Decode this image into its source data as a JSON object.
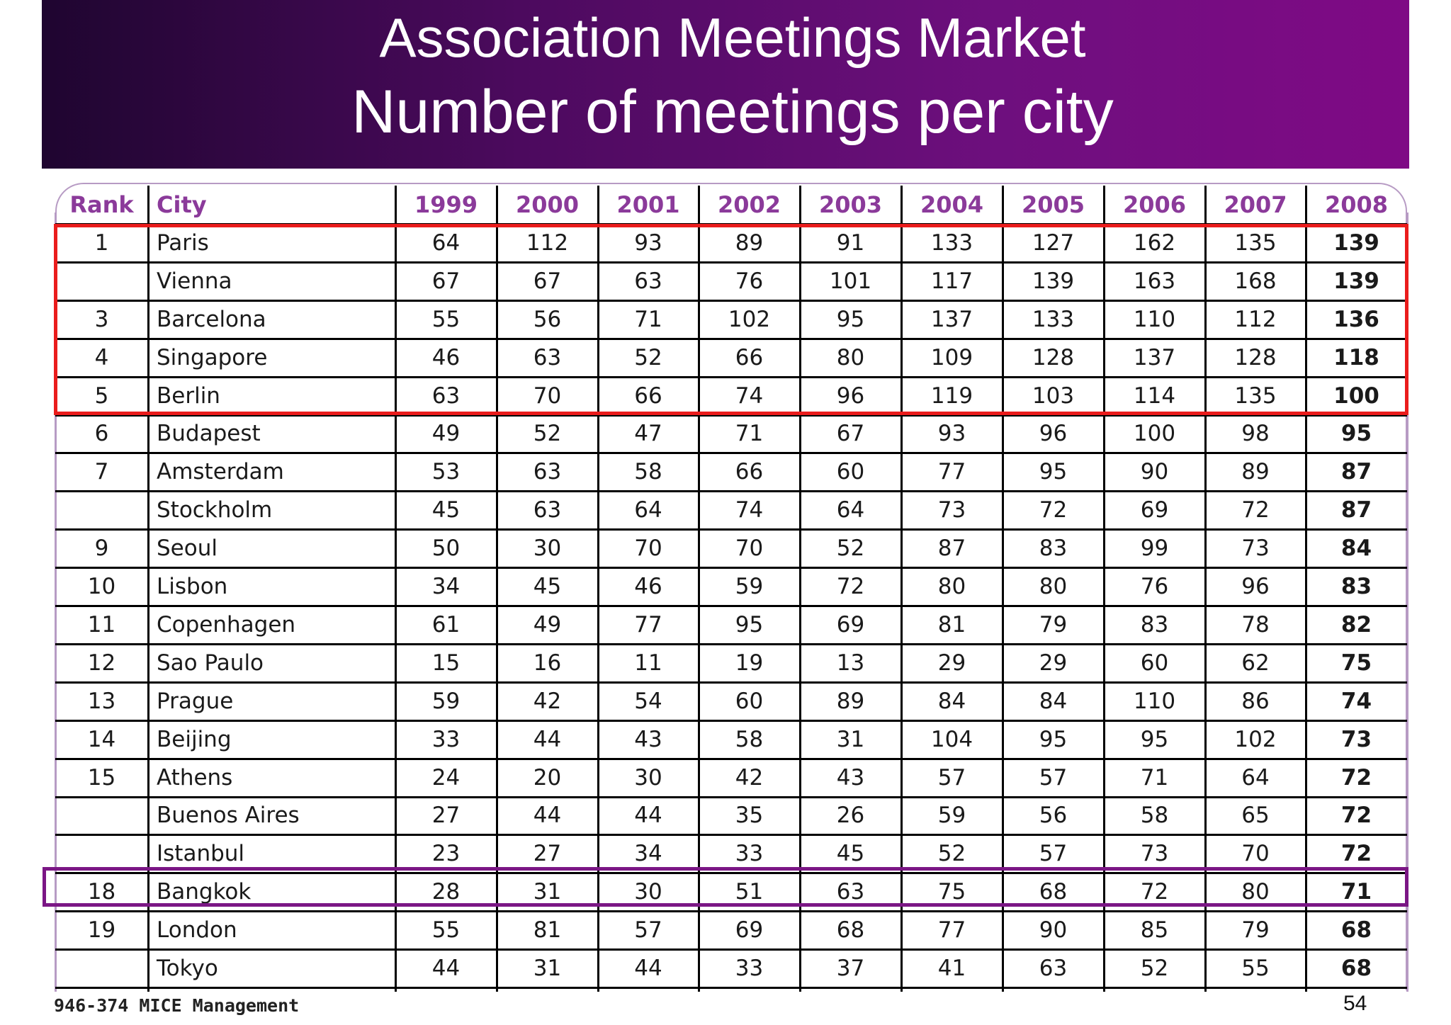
{
  "slide": {
    "title_line1": "Association Meetings Market",
    "title_line2": "Number of meetings per city",
    "footer": "946-374 MICE Management",
    "page_number": "54"
  },
  "colors": {
    "banner_start": "#1f0530",
    "banner_end": "#7f0a85",
    "header_text": "#8b3a9a",
    "highlight_top5": "#ea1c1c",
    "highlight_bangkok": "#7b1685"
  },
  "table": {
    "headers": [
      "Rank",
      "City",
      "1999",
      "2000",
      "2001",
      "2002",
      "2003",
      "2004",
      "2005",
      "2006",
      "2007",
      "2008"
    ],
    "rows": [
      [
        "1",
        "Paris",
        "64",
        "112",
        "93",
        "89",
        "91",
        "133",
        "127",
        "162",
        "135",
        "139"
      ],
      [
        "",
        "Vienna",
        "67",
        "67",
        "63",
        "76",
        "101",
        "117",
        "139",
        "163",
        "168",
        "139"
      ],
      [
        "3",
        "Barcelona",
        "55",
        "56",
        "71",
        "102",
        "95",
        "137",
        "133",
        "110",
        "112",
        "136"
      ],
      [
        "4",
        "Singapore",
        "46",
        "63",
        "52",
        "66",
        "80",
        "109",
        "128",
        "137",
        "128",
        "118"
      ],
      [
        "5",
        "Berlin",
        "63",
        "70",
        "66",
        "74",
        "96",
        "119",
        "103",
        "114",
        "135",
        "100"
      ],
      [
        "6",
        "Budapest",
        "49",
        "52",
        "47",
        "71",
        "67",
        "93",
        "96",
        "100",
        "98",
        "95"
      ],
      [
        "7",
        "Amsterdam",
        "53",
        "63",
        "58",
        "66",
        "60",
        "77",
        "95",
        "90",
        "89",
        "87"
      ],
      [
        "",
        "Stockholm",
        "45",
        "63",
        "64",
        "74",
        "64",
        "73",
        "72",
        "69",
        "72",
        "87"
      ],
      [
        "9",
        "Seoul",
        "50",
        "30",
        "70",
        "70",
        "52",
        "87",
        "83",
        "99",
        "73",
        "84"
      ],
      [
        "10",
        "Lisbon",
        "34",
        "45",
        "46",
        "59",
        "72",
        "80",
        "80",
        "76",
        "96",
        "83"
      ],
      [
        "11",
        "Copenhagen",
        "61",
        "49",
        "77",
        "95",
        "69",
        "81",
        "79",
        "83",
        "78",
        "82"
      ],
      [
        "12",
        "Sao Paulo",
        "15",
        "16",
        "11",
        "19",
        "13",
        "29",
        "29",
        "60",
        "62",
        "75"
      ],
      [
        "13",
        "Prague",
        "59",
        "42",
        "54",
        "60",
        "89",
        "84",
        "84",
        "110",
        "86",
        "74"
      ],
      [
        "14",
        "Beijing",
        "33",
        "44",
        "43",
        "58",
        "31",
        "104",
        "95",
        "95",
        "102",
        "73"
      ],
      [
        "15",
        "Athens",
        "24",
        "20",
        "30",
        "42",
        "43",
        "57",
        "57",
        "71",
        "64",
        "72"
      ],
      [
        "",
        "Buenos Aires",
        "27",
        "44",
        "44",
        "35",
        "26",
        "59",
        "56",
        "58",
        "65",
        "72"
      ],
      [
        "",
        "Istanbul",
        "23",
        "27",
        "34",
        "33",
        "45",
        "52",
        "57",
        "73",
        "70",
        "72"
      ],
      [
        "18",
        "Bangkok",
        "28",
        "31",
        "30",
        "51",
        "63",
        "75",
        "68",
        "72",
        "80",
        "71"
      ],
      [
        "19",
        "London",
        "55",
        "81",
        "57",
        "69",
        "68",
        "77",
        "90",
        "85",
        "79",
        "68"
      ],
      [
        "",
        "Tokyo",
        "44",
        "31",
        "44",
        "33",
        "37",
        "41",
        "63",
        "52",
        "55",
        "68"
      ]
    ]
  }
}
